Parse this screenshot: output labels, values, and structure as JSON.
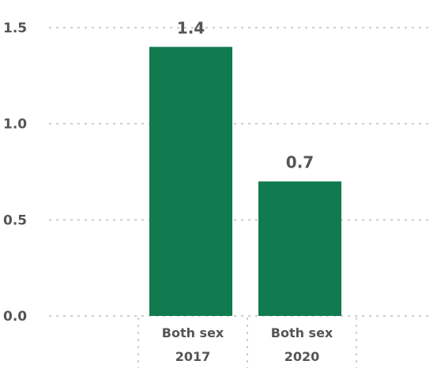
{
  "chart_data": {
    "type": "bar",
    "categories": [
      [
        "Both sex",
        "2017"
      ],
      [
        "Both sex",
        "2020"
      ]
    ],
    "values": [
      1.4,
      0.7
    ],
    "data_labels": [
      "1.4",
      "0.7"
    ],
    "yticks": [
      "0.0",
      "0.5",
      "1.0",
      "1.5"
    ],
    "ylim": [
      0,
      1.5
    ],
    "grid": "horizontal-dotted",
    "colors": {
      "bar": "#127a4f",
      "grid": "#bdbdbd",
      "text": "#555555"
    }
  }
}
